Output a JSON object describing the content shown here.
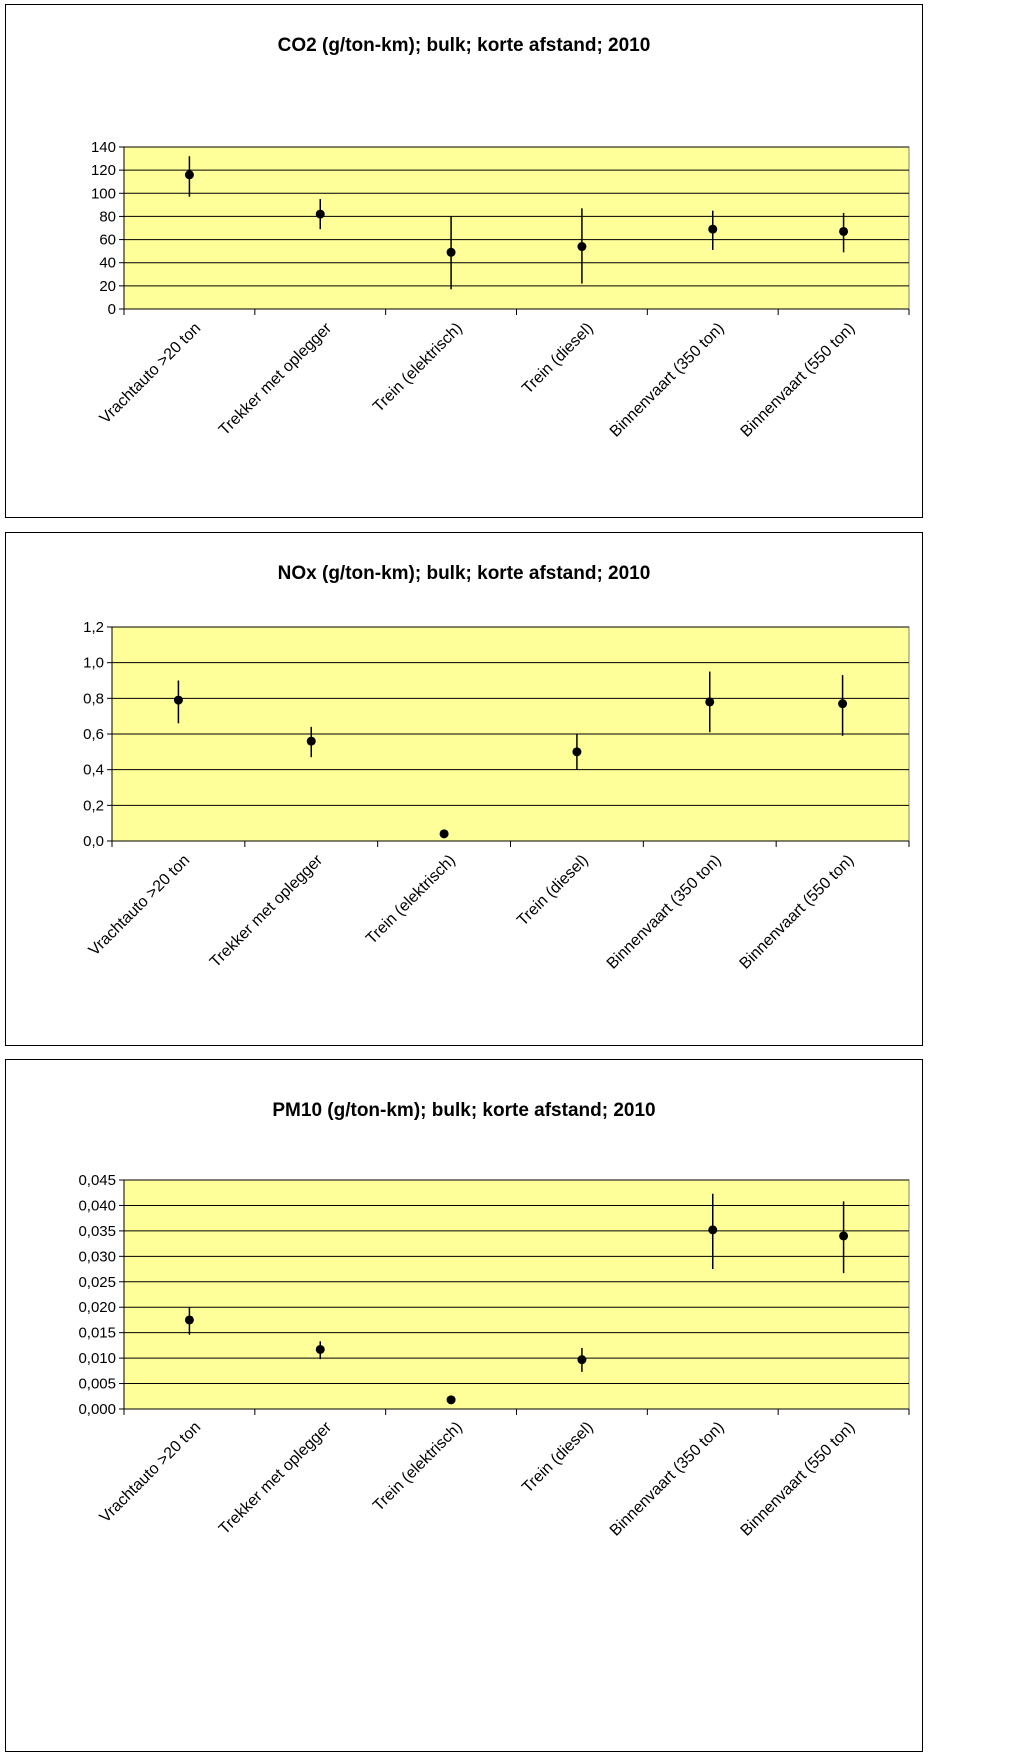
{
  "chart_data": [
    {
      "type": "scatter",
      "title": "CO2 (g/ton-km); bulk; korte afstand; 2010",
      "categories": [
        "Vrachtauto >20 ton",
        "Trekker met oplegger",
        "Trein (elektrisch)",
        "Trein (diesel)",
        "Binnenvaart (350 ton)",
        "Binnenvaart (550 ton)"
      ],
      "values": [
        116,
        82,
        49,
        54,
        69,
        67
      ],
      "error_low": [
        97,
        69,
        17,
        22,
        51,
        49
      ],
      "error_high": [
        132,
        95,
        80,
        87,
        85,
        83
      ],
      "ylim": [
        0,
        140
      ],
      "yticks": [
        "0",
        "20",
        "40",
        "60",
        "80",
        "100",
        "120",
        "140"
      ],
      "ytick_values": [
        0,
        20,
        40,
        60,
        80,
        100,
        120,
        140
      ],
      "xlabel": "",
      "ylabel": "",
      "grid": true,
      "colors": {
        "plot_bg": "#ffff99",
        "marker": "#000000"
      }
    },
    {
      "type": "scatter",
      "title": "NOx (g/ton-km); bulk; korte afstand; 2010",
      "categories": [
        "Vrachtauto >20 ton",
        "Trekker met oplegger",
        "Trein (elektrisch)",
        "Trein (diesel)",
        "Binnenvaart (350 ton)",
        "Binnenvaart (550 ton)"
      ],
      "values": [
        0.79,
        0.56,
        0.04,
        0.5,
        0.78,
        0.77
      ],
      "error_low": [
        0.66,
        0.47,
        null,
        0.4,
        0.61,
        0.59
      ],
      "error_high": [
        0.9,
        0.64,
        null,
        0.6,
        0.95,
        0.93
      ],
      "ylim": [
        0,
        1.2
      ],
      "yticks": [
        "0,0",
        "0,2",
        "0,4",
        "0,6",
        "0,8",
        "1,0",
        "1,2"
      ],
      "ytick_values": [
        0,
        0.2,
        0.4,
        0.6,
        0.8,
        1.0,
        1.2
      ],
      "xlabel": "",
      "ylabel": "",
      "grid": true,
      "colors": {
        "plot_bg": "#ffff99",
        "marker": "#000000"
      }
    },
    {
      "type": "scatter",
      "title": "PM10 (g/ton-km); bulk; korte afstand; 2010",
      "categories": [
        "Vrachtauto >20 ton",
        "Trekker met oplegger",
        "Trein (elektrisch)",
        "Trein (diesel)",
        "Binnenvaart (350 ton)",
        "Binnenvaart (550 ton)"
      ],
      "values": [
        0.0175,
        0.0117,
        0.0018,
        0.0097,
        0.0352,
        0.034
      ],
      "error_low": [
        0.0146,
        0.0098,
        null,
        0.0073,
        0.0275,
        0.0267
      ],
      "error_high": [
        0.02,
        0.0133,
        null,
        0.012,
        0.0423,
        0.0408
      ],
      "ylim": [
        0,
        0.045
      ],
      "yticks": [
        "0,000",
        "0,005",
        "0,010",
        "0,015",
        "0,020",
        "0,025",
        "0,030",
        "0,035",
        "0,040",
        "0,045"
      ],
      "ytick_values": [
        0,
        0.005,
        0.01,
        0.015,
        0.02,
        0.025,
        0.03,
        0.035,
        0.04,
        0.045
      ],
      "xlabel": "",
      "ylabel": "",
      "grid": true,
      "colors": {
        "plot_bg": "#ffff99",
        "marker": "#000000"
      }
    }
  ]
}
